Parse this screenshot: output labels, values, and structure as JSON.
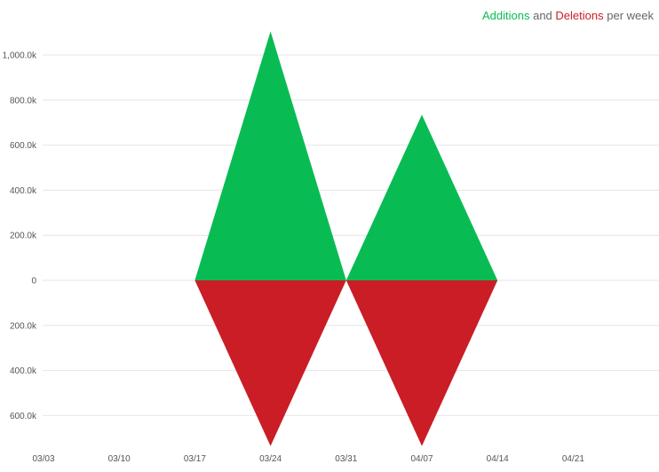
{
  "legend": {
    "additions": "Additions",
    "and": "and",
    "deletions": "Deletions",
    "suffix": "per week"
  },
  "colors": {
    "additions": "#08bc53",
    "deletions": "#ca1d25",
    "grid": "#e6e6e6",
    "axis_text": "#555555",
    "legend_text": "#666666"
  },
  "chart_data": {
    "type": "area",
    "x": [
      "03/03",
      "03/10",
      "03/17",
      "03/24",
      "03/31",
      "04/07",
      "04/14",
      "04/21"
    ],
    "xticks": [
      "03/03",
      "03/10",
      "03/17",
      "03/24",
      "03/31",
      "04/07",
      "04/14",
      "04/21"
    ],
    "yticks": [
      1000000,
      800000,
      600000,
      400000,
      200000,
      0,
      -200000,
      -400000,
      -600000
    ],
    "ytick_labels": [
      "1,000.0k",
      "800.0k",
      "600.0k",
      "400.0k",
      "200.0k",
      "0",
      "200.0k",
      "400.0k",
      "600.0k"
    ],
    "ylim": [
      -735000,
      1120000
    ],
    "grid": true,
    "legend_position": "top-right",
    "series": [
      {
        "name": "Additions",
        "values": [
          0,
          0,
          0,
          1105000,
          0,
          735000,
          0,
          0
        ]
      },
      {
        "name": "Deletions",
        "values": [
          0,
          0,
          0,
          -735000,
          0,
          -735000,
          0,
          0
        ]
      }
    ]
  }
}
